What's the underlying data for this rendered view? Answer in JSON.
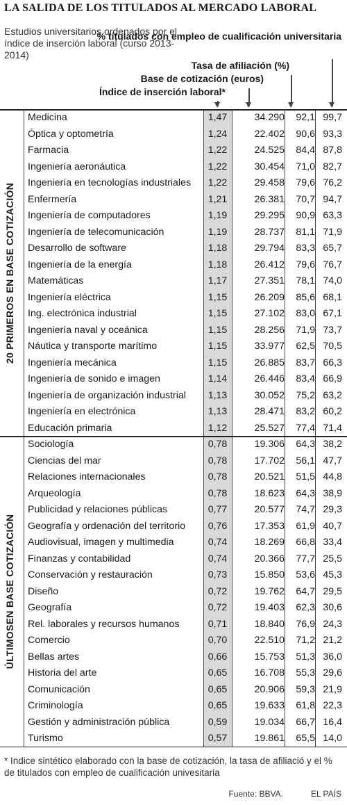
{
  "chart_data": {
    "type": "table",
    "title": "LA SALIDA DE LOS TITULADOS AL MERCADO LABORAL",
    "subtitle": "Estudios universitarios ordenados por el índice de inserción laboral (curso 2013-2014)",
    "columns": [
      "Índice de inserción laboral*",
      "Base de cotización (euros)",
      "Tasa de afiliación (%)",
      "% titulados con empleo de cualificación universitaria"
    ],
    "groups": [
      {
        "label": "20 PRIMEROS EN BASE COTIZACIÓN",
        "rows": [
          {
            "name": "Medicina",
            "indice": "1,47",
            "base": "34.290",
            "tasa": "92,1",
            "pct": "99,7"
          },
          {
            "name": "Óptica y optometría",
            "indice": "1,24",
            "base": "22.402",
            "tasa": "90,6",
            "pct": "93,3"
          },
          {
            "name": "Farmacia",
            "indice": "1,22",
            "base": "24.525",
            "tasa": "84,4",
            "pct": "87,8"
          },
          {
            "name": "Ingeniería aeronáutica",
            "indice": "1,22",
            "base": "30.454",
            "tasa": "71,0",
            "pct": "82,7"
          },
          {
            "name": "Ingeniería en tecnologías industriales",
            "indice": "1,22",
            "base": "29.458",
            "tasa": "79,6",
            "pct": "76,2"
          },
          {
            "name": "Enfermería",
            "indice": "1,21",
            "base": "26.381",
            "tasa": "70,7",
            "pct": "94,7"
          },
          {
            "name": "Ingeniería de computadores",
            "indice": "1,19",
            "base": "29.295",
            "tasa": "90,9",
            "pct": "63,3"
          },
          {
            "name": "Ingeniería de telecomunicación",
            "indice": "1,19",
            "base": "28.737",
            "tasa": "81,1",
            "pct": "71,9"
          },
          {
            "name": "Desarrollo de software",
            "indice": "1,18",
            "base": "29.794",
            "tasa": "83,3",
            "pct": "65,7"
          },
          {
            "name": "Ingeniería de la energía",
            "indice": "1,18",
            "base": "26.412",
            "tasa": "79,6",
            "pct": "76,7"
          },
          {
            "name": "Matemáticas",
            "indice": "1,17",
            "base": "27.351",
            "tasa": "78,1",
            "pct": "74,0"
          },
          {
            "name": "Ingeniería eléctrica",
            "indice": "1,15",
            "base": "26.209",
            "tasa": "85,6",
            "pct": "68,1"
          },
          {
            "name": "Ing. electrónica industrial",
            "indice": "1,15",
            "base": "27.102",
            "tasa": "83,0",
            "pct": "67,1"
          },
          {
            "name": "Ingeniería naval y oceánica",
            "indice": "1,15",
            "base": "28.256",
            "tasa": "71,9",
            "pct": "73,7"
          },
          {
            "name": "Náutica y transporte marítimo",
            "indice": "1,15",
            "base": "33.977",
            "tasa": "62,5",
            "pct": "70,5"
          },
          {
            "name": "Ingeniería mecánica",
            "indice": "1,15",
            "base": "26.885",
            "tasa": "83,7",
            "pct": "66,3"
          },
          {
            "name": "Ingeniería de sonido e imagen",
            "indice": "1,14",
            "base": "26.446",
            "tasa": "83,4",
            "pct": "66,9"
          },
          {
            "name": "Ingeniería de organización industrial",
            "indice": "1,13",
            "base": "30.052",
            "tasa": "75,2",
            "pct": "63,2"
          },
          {
            "name": "Ingeniería en electrónica",
            "indice": "1,13",
            "base": "28.471",
            "tasa": "83,2",
            "pct": "60,2"
          },
          {
            "name": "Educación primaria",
            "indice": "1,12",
            "base": "25.527",
            "tasa": "77,4",
            "pct": "71,4"
          }
        ]
      },
      {
        "label": "ÚLTIMOSEN BASE COTIZACIÓN",
        "rows": [
          {
            "name": "Sociología",
            "indice": "0,78",
            "base": "19.306",
            "tasa": "64,3",
            "pct": "38,2"
          },
          {
            "name": "Ciencias del mar",
            "indice": "0,78",
            "base": "17.702",
            "tasa": "56,1",
            "pct": "47,7"
          },
          {
            "name": "Relaciones internacionales",
            "indice": "0,78",
            "base": "20.521",
            "tasa": "51,5",
            "pct": "44,8"
          },
          {
            "name": "Arqueología",
            "indice": "0,78",
            "base": "18.623",
            "tasa": "64,3",
            "pct": "38,9"
          },
          {
            "name": "Publicidad y relaciones públicas",
            "indice": "0,77",
            "base": "20.577",
            "tasa": "74,7",
            "pct": "29,3"
          },
          {
            "name": "Geografía y ordenación del territorio",
            "indice": "0,76",
            "base": "17.353",
            "tasa": "61,9",
            "pct": "40,7"
          },
          {
            "name": "Audiovisual, imagen y multimedia",
            "indice": "0,74",
            "base": "18.269",
            "tasa": "66,8",
            "pct": "33,4"
          },
          {
            "name": "Finanzas y contabilidad",
            "indice": "0,74",
            "base": "20.366",
            "tasa": "77,7",
            "pct": "25,5"
          },
          {
            "name": "Conservación y restauración",
            "indice": "0,73",
            "base": "15.850",
            "tasa": "53,6",
            "pct": "45,3"
          },
          {
            "name": "Diseño",
            "indice": "0,72",
            "base": "19.762",
            "tasa": "64,7",
            "pct": "29,5"
          },
          {
            "name": "Geografía",
            "indice": "0,72",
            "base": "19.403",
            "tasa": "62,3",
            "pct": "30,6"
          },
          {
            "name": "Rel. laborales y recursos humanos",
            "indice": "0,71",
            "base": "18.840",
            "tasa": "76,9",
            "pct": "24,3"
          },
          {
            "name": "Comercio",
            "indice": "0,70",
            "base": "22.510",
            "tasa": "71,2",
            "pct": "21,2"
          },
          {
            "name": "Bellas artes",
            "indice": "0,66",
            "base": "15.753",
            "tasa": "51,3",
            "pct": "36,0"
          },
          {
            "name": "Historia del arte",
            "indice": "0,65",
            "base": "16.708",
            "tasa": "55,3",
            "pct": "29,6"
          },
          {
            "name": "Comunicación",
            "indice": "0,65",
            "base": "20.906",
            "tasa": "59,3",
            "pct": "21,9"
          },
          {
            "name": "Criminología",
            "indice": "0,65",
            "base": "19.633",
            "tasa": "61,8",
            "pct": "22,3"
          },
          {
            "name": "Gestión y administración pública",
            "indice": "0,59",
            "base": "19.034",
            "tasa": "66,7",
            "pct": "16,4"
          },
          {
            "name": "Turismo",
            "indice": "0,57",
            "base": "19.861",
            "tasa": "65,5",
            "pct": "14,0"
          }
        ]
      }
    ],
    "footnote": "* Indice sintético elaborado con la base de cotización, la tasa de afiliació y el % de titulados con empleo de cualificación univesitaria",
    "source": "Fuente: BBVA.",
    "publisher": "EL PAÍS",
    "colors": {
      "index_column_fill": "#d9d9d9",
      "text": "#1a1a1a"
    }
  }
}
